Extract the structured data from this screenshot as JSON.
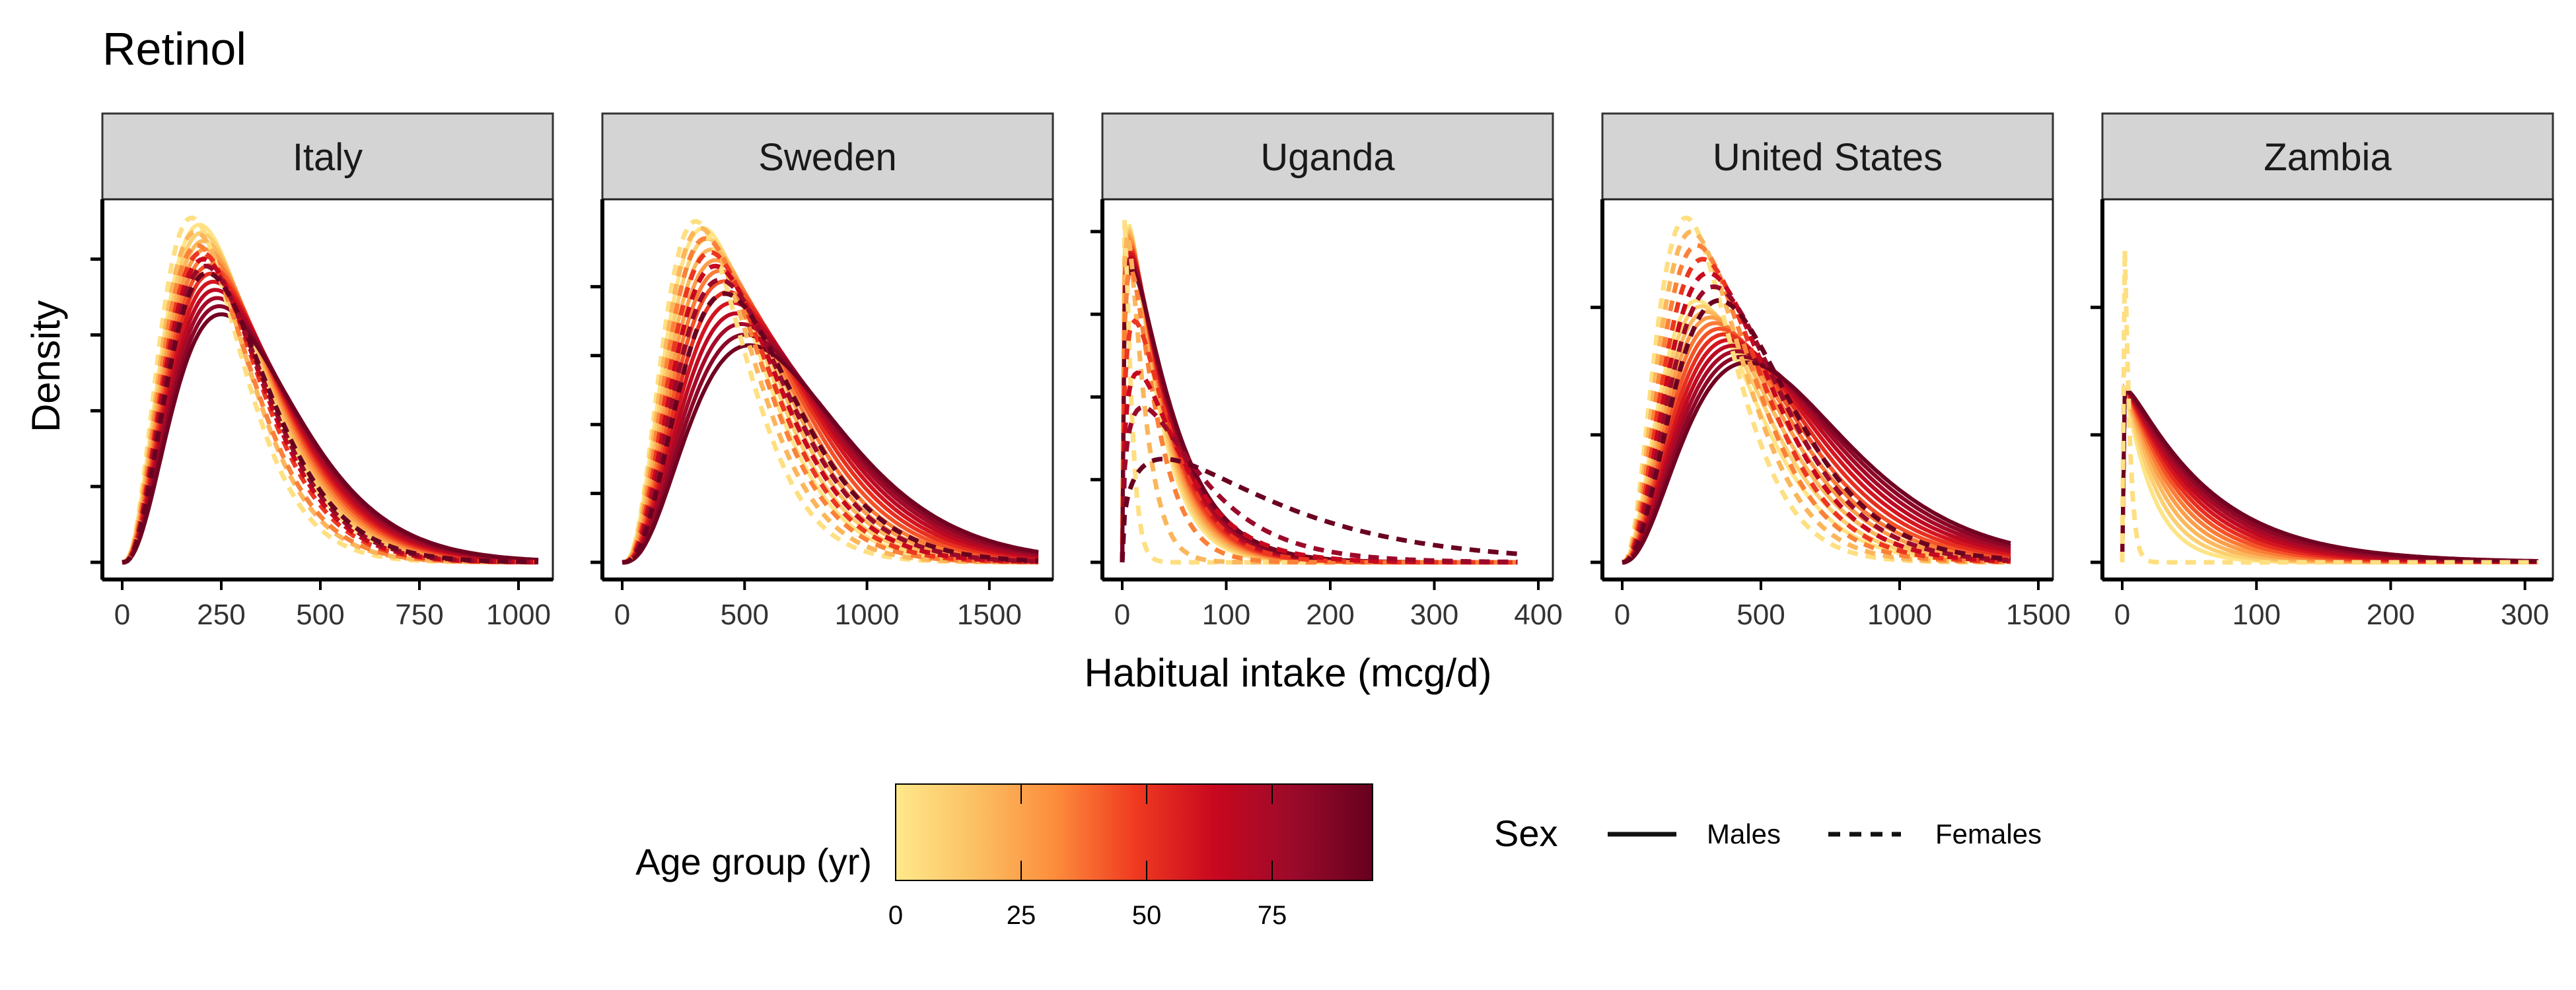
{
  "chart_data": {
    "type": "line",
    "title": "Retinol",
    "xlabel": "Habitual intake (mcg/d)",
    "ylabel": "Density",
    "facets": [
      {
        "name": "Italy",
        "xlim": [
          0,
          1050
        ],
        "xticks": [
          0,
          250,
          500,
          750,
          1000
        ],
        "ylim": [
          0,
          1.0
        ],
        "yticks": [
          0,
          0.22,
          0.44,
          0.66,
          0.88
        ],
        "male_mode_range": [
          195,
          250
        ],
        "male_peak_range": [
          0.98,
          0.72
        ],
        "female_modes": [
          175,
          185,
          190,
          200,
          205,
          210,
          215
        ],
        "female_peaks": [
          1.0,
          0.96,
          0.92,
          0.9,
          0.88,
          0.86,
          0.84
        ]
      },
      {
        "name": "Sweden",
        "xlim": [
          0,
          1700
        ],
        "xticks": [
          0,
          500,
          1000,
          1500
        ],
        "ylim": [
          0,
          1.0
        ],
        "yticks": [
          0,
          0.2,
          0.4,
          0.6,
          0.8
        ],
        "male_mode_range": [
          330,
          520
        ],
        "male_peak_range": [
          0.97,
          0.63
        ],
        "female_modes": [
          300,
          320,
          340,
          360,
          380,
          400,
          420
        ],
        "female_peaks": [
          0.99,
          0.97,
          0.94,
          0.9,
          0.86,
          0.82,
          0.78
        ]
      },
      {
        "name": "Uganda",
        "xlim": [
          0,
          380
        ],
        "xticks": [
          0,
          100,
          200,
          300,
          400
        ],
        "ylim": [
          0,
          1.0
        ],
        "yticks": [
          0,
          0.24,
          0.48,
          0.72,
          0.96
        ],
        "male_mode_range": [
          6,
          9
        ],
        "male_peak_range": [
          0.98,
          0.85
        ],
        "female_modes": [
          2,
          5,
          8,
          12,
          15,
          20,
          40
        ],
        "female_peaks": [
          1.0,
          0.95,
          0.85,
          0.7,
          0.55,
          0.45,
          0.3
        ]
      },
      {
        "name": "United States",
        "xlim": [
          0,
          1400
        ],
        "xticks": [
          0,
          500,
          1000,
          1500
        ],
        "ylim": [
          0,
          1.0
        ],
        "yticks": [
          0,
          0.37,
          0.74
        ],
        "male_mode_range": [
          270,
          450
        ],
        "male_peak_range": [
          0.76,
          0.58
        ],
        "female_modes": [
          230,
          250,
          270,
          290,
          310,
          330,
          350
        ],
        "female_peaks": [
          1.0,
          0.96,
          0.92,
          0.88,
          0.84,
          0.8,
          0.76
        ]
      },
      {
        "name": "Zambia",
        "xlim": [
          0,
          310
        ],
        "xticks": [
          0,
          100,
          200,
          300
        ],
        "ylim": [
          0,
          1.0
        ],
        "yticks": [
          0,
          0.37,
          0.74
        ],
        "male_mode_range": [
          1,
          3
        ],
        "male_peak_range": [
          0.5,
          0.5
        ],
        "female_modes": [
          1
        ],
        "female_peaks": [
          1.0
        ]
      }
    ],
    "color_legend": {
      "title": "Age group (yr)",
      "min": 0,
      "max": 95,
      "ticks": [
        0,
        25,
        50,
        75
      ],
      "colors": [
        "#ffe98b",
        "#fbc063",
        "#fd8d3c",
        "#f03b20",
        "#c9081f",
        "#9b0a2a",
        "#67001f"
      ]
    },
    "linetype_legend": {
      "title": "Sex",
      "entries": [
        {
          "label": "Males",
          "dash": "solid"
        },
        {
          "label": "Females",
          "dash": "dashed"
        }
      ]
    },
    "grid": false,
    "legend_position": "bottom"
  }
}
